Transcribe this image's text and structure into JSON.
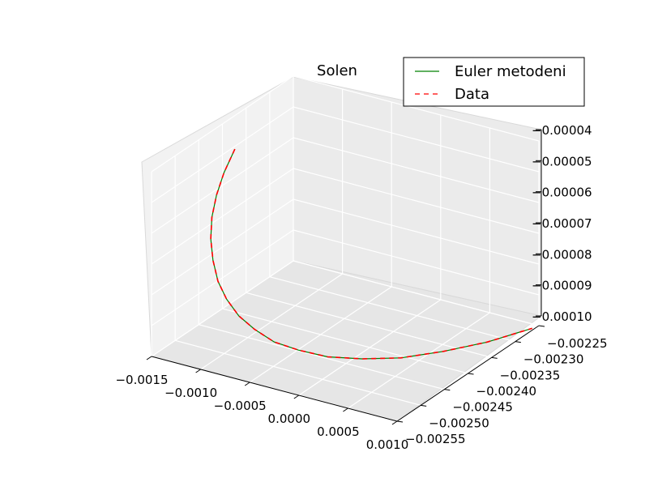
{
  "chart_data": {
    "type": "line",
    "title": "Solen",
    "projection": "3d",
    "xlabel": "",
    "ylabel": "",
    "zlabel": "",
    "x_ticks": [
      "−0.0015",
      "−0.0010",
      "−0.0005",
      "0.0000",
      "0.0005",
      "0.0010"
    ],
    "y_ticks": [
      "−0.00255",
      "−0.00250",
      "−0.00245",
      "−0.00240",
      "−0.00235",
      "−0.00230",
      "−0.00225"
    ],
    "z_ticks": [
      "−0.00004",
      "−0.00005",
      "−0.00006",
      "−0.00007",
      "−0.00008",
      "−0.00009",
      "−0.00010"
    ],
    "xlim": [
      -0.0015,
      0.001
    ],
    "ylim": [
      -0.00255,
      -0.00225
    ],
    "zlim": [
      -0.0001,
      -4e-05
    ],
    "grid": true,
    "legend_position": "top-right",
    "series": [
      {
        "name": "Euler metodeni",
        "color": "#008000",
        "style": "solid",
        "x": [
          -0.00147,
          -0.00146,
          -0.00144,
          -0.0014,
          -0.00134,
          -0.00126,
          -0.00116,
          -0.00104,
          -0.0009,
          -0.00074,
          -0.00056,
          -0.00036,
          -0.00014,
          0.0001,
          0.00034,
          0.00058,
          0.0008,
          0.00098
        ],
        "y": [
          -0.00238,
          -0.002405,
          -0.002425,
          -0.002443,
          -0.002458,
          -0.00247,
          -0.00248,
          -0.002487,
          -0.00249,
          -0.00249,
          -0.002486,
          -0.002476,
          -0.00246,
          -0.002437,
          -0.002405,
          -0.002365,
          -0.002318,
          -0.00226
        ],
        "z": [
          -5e-05,
          -5.5e-05,
          -6e-05,
          -6.5e-05,
          -7e-05,
          -7.5e-05,
          -8e-05,
          -8.4e-05,
          -8.8e-05,
          -9.1e-05,
          -9.4e-05,
          -9.6e-05,
          -9.8e-05,
          -9.9e-05,
          -0.0001,
          -0.0001,
          -0.0001,
          -0.0001
        ]
      },
      {
        "name": "Data",
        "color": "#ff0000",
        "style": "dashed",
        "x": [
          -0.00147,
          -0.00146,
          -0.00144,
          -0.0014,
          -0.00134,
          -0.00126,
          -0.00116,
          -0.00104,
          -0.0009,
          -0.00074,
          -0.00056,
          -0.00036,
          -0.00014,
          0.0001,
          0.00034,
          0.00058,
          0.0008,
          0.00098
        ],
        "y": [
          -0.00238,
          -0.002405,
          -0.002425,
          -0.002443,
          -0.002458,
          -0.00247,
          -0.00248,
          -0.002487,
          -0.00249,
          -0.00249,
          -0.002486,
          -0.002476,
          -0.00246,
          -0.002437,
          -0.002405,
          -0.002365,
          -0.002318,
          -0.00226
        ],
        "z": [
          -5e-05,
          -5.5e-05,
          -6e-05,
          -6.5e-05,
          -7e-05,
          -7.5e-05,
          -8e-05,
          -8.4e-05,
          -8.8e-05,
          -9.1e-05,
          -9.4e-05,
          -9.6e-05,
          -9.8e-05,
          -9.9e-05,
          -0.0001,
          -0.0001,
          -0.0001,
          -0.0001
        ]
      }
    ]
  }
}
